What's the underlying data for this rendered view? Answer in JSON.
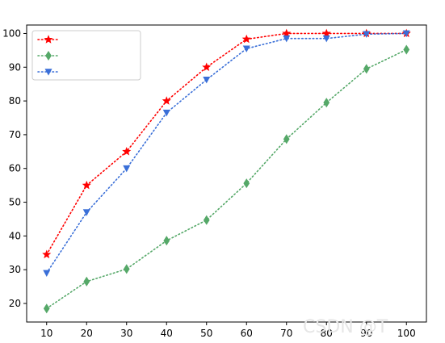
{
  "chart_data": {
    "type": "line",
    "x": [
      10,
      20,
      30,
      40,
      50,
      60,
      70,
      80,
      90,
      100
    ],
    "xticks": [
      "10",
      "20",
      "30",
      "40",
      "50",
      "60",
      "70",
      "80",
      "90",
      "100"
    ],
    "yticks": [
      "20",
      "30",
      "40",
      "50",
      "60",
      "70",
      "80",
      "90",
      "100"
    ],
    "xlim": [
      5,
      105
    ],
    "ylim": [
      14.5,
      102.5
    ],
    "grid": false,
    "legend_position": "top-left",
    "series": [
      {
        "name": "",
        "color": "#ff0000",
        "marker": "star",
        "line": "dotted",
        "values": [
          34.5,
          55,
          65,
          80,
          90,
          98.3,
          100,
          100,
          100,
          100
        ]
      },
      {
        "name": "",
        "color": "#55a868",
        "marker": "diamond",
        "line": "dotted",
        "values": [
          18.5,
          26.5,
          30.2,
          38.6,
          44.7,
          55.6,
          68.7,
          79.5,
          89.5,
          95.2
        ]
      },
      {
        "name": "",
        "color": "#3a6fd8",
        "marker": "triangle-down",
        "line": "dotted",
        "values": [
          29,
          47,
          60,
          76.5,
          86.3,
          95.5,
          98.5,
          98.5,
          99.8,
          100
        ]
      }
    ]
  },
  "watermark": "CSDN @T"
}
